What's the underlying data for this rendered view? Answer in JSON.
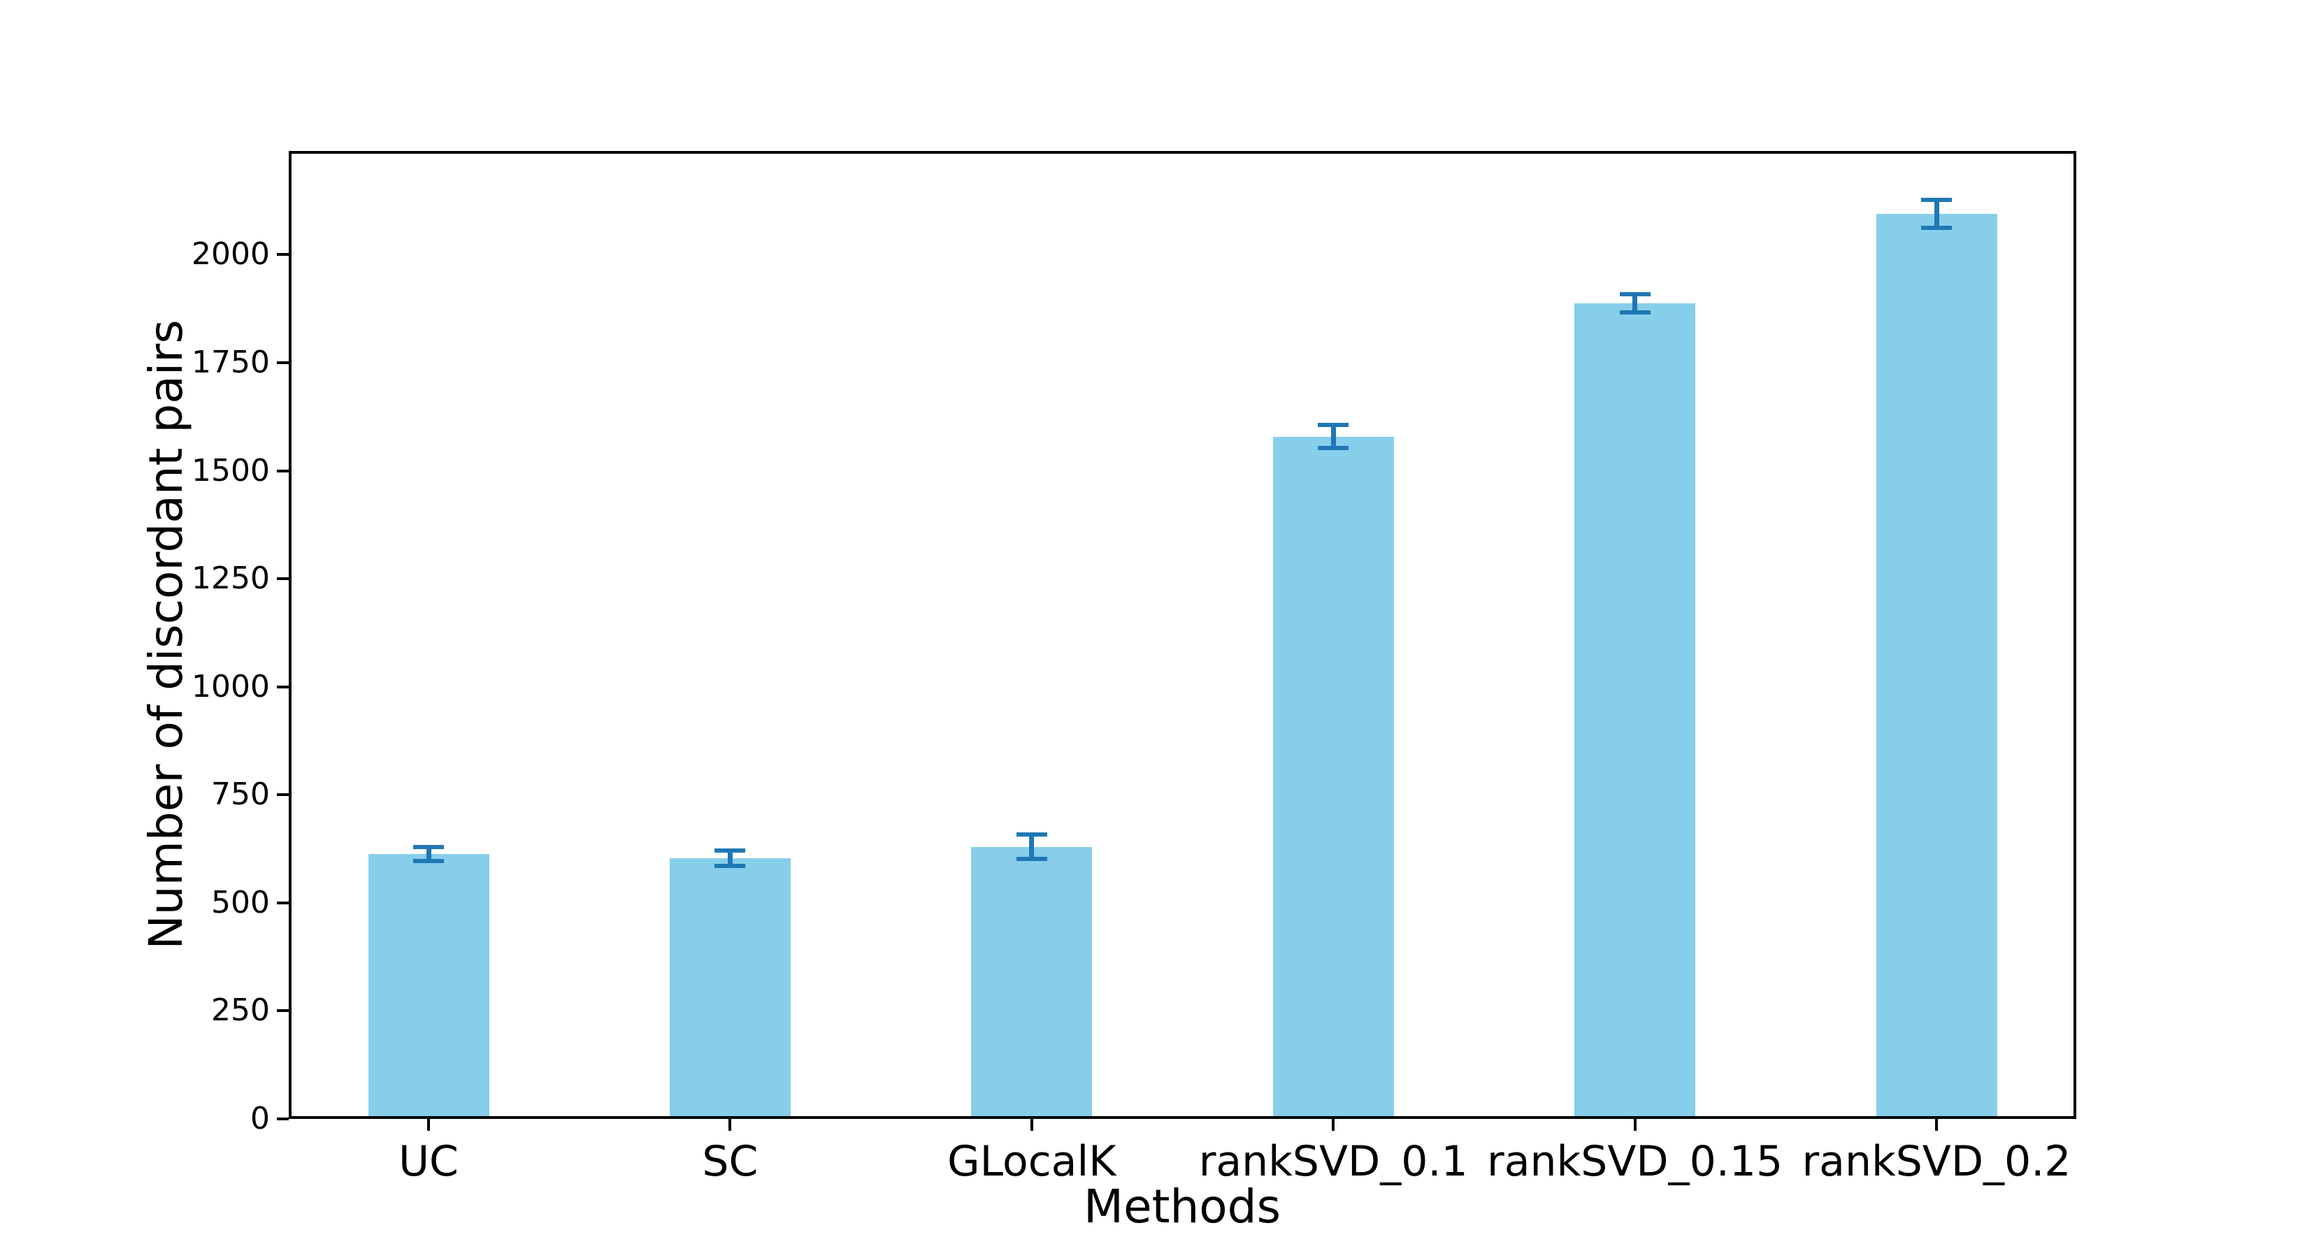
{
  "chart_data": {
    "type": "bar",
    "title": "",
    "xlabel": "Methods",
    "ylabel": "Number of discordant pairs",
    "categories": [
      "UC",
      "SC",
      "GLocalK",
      "rankSVD_0.1",
      "rankSVD_0.15",
      "rankSVD_0.2"
    ],
    "values": [
      610,
      600,
      627,
      1582,
      1892,
      2100
    ],
    "error_bars": [
      16,
      18,
      28,
      27,
      21,
      32
    ],
    "yticks": [
      0,
      250,
      500,
      750,
      1000,
      1250,
      1500,
      1750,
      2000
    ],
    "ylim": [
      0,
      2240
    ],
    "grid": false,
    "legend_position": "none",
    "bar_color": "#87ceeb",
    "error_color": "#1f77b4",
    "axis_color": "#000000"
  }
}
